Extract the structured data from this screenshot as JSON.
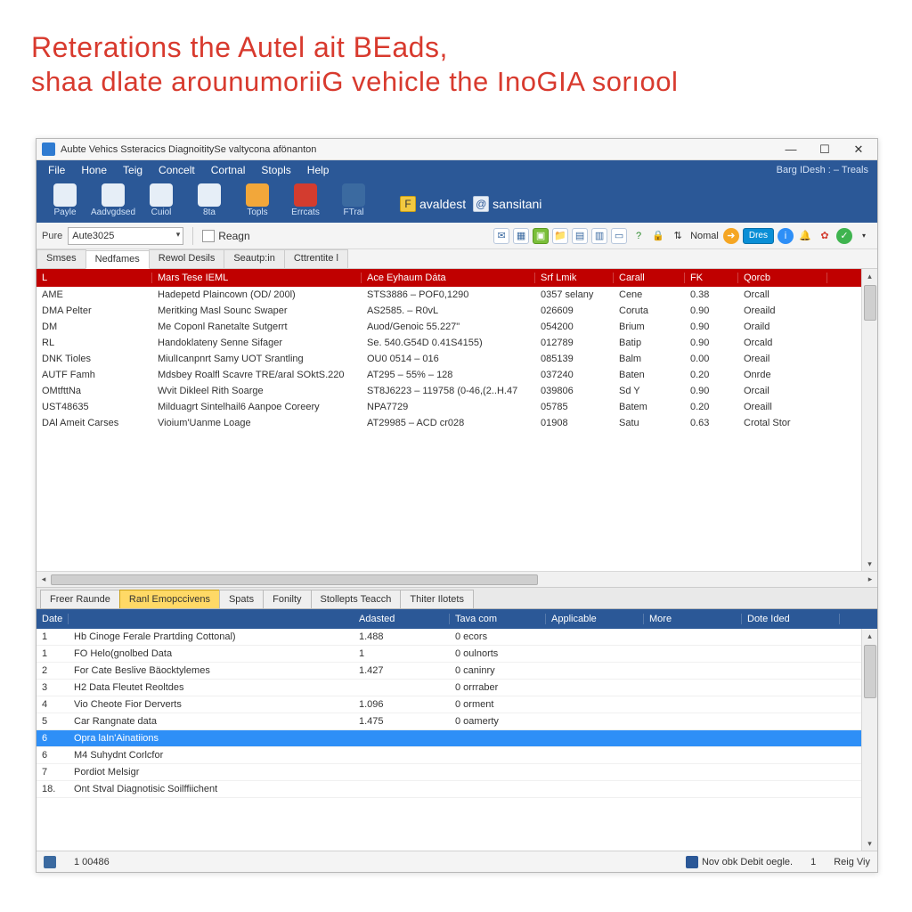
{
  "headline": {
    "line1": "Reterations the Autel ait BEads,",
    "line2": "shaa dlate arounumoriiG vehicle the InoGIA sorıool"
  },
  "window": {
    "title": "Aubte Vehics Ssteracics DiagnoititySe valtycona afönanton"
  },
  "menubar": {
    "items": [
      "File",
      "Hone",
      "Teig",
      "Concelt",
      "Cortnal",
      "Stopls",
      "Help"
    ],
    "right_label": "Barg IDesh : – Treals"
  },
  "toolbar": {
    "buttons": [
      {
        "label": "Payle",
        "color": "#e6eef7"
      },
      {
        "label": "Aadvgdsed",
        "color": "#e6eef7"
      },
      {
        "label": "Cuiol",
        "color": "#e6eef7"
      },
      {
        "label": "8ta",
        "color": "#e6eef7"
      },
      {
        "label": "Topls",
        "color": "#f2a73a"
      },
      {
        "label": "Errcats",
        "color": "#d33c2f"
      },
      {
        "label": "FTral",
        "color": "#3b6aa0"
      }
    ],
    "badges": [
      {
        "icon": "F",
        "label": "avaldest",
        "alt": false
      },
      {
        "icon": "@",
        "label": "sansitani",
        "alt": true
      }
    ]
  },
  "filterrow": {
    "label": "Pure",
    "combo_value": "Aute3025",
    "action_label": "Reagn",
    "status_word": "Nomal",
    "pill": "Dres"
  },
  "subtabs": {
    "items": [
      "Smses",
      "Nedfames",
      "Rewol Desils",
      "Seautp:in",
      "Cttrentite l"
    ],
    "active_index": 1
  },
  "main_table": {
    "columns": [
      "L",
      "Mars Tese IEML",
      "Ace Eyhaum Dáta",
      "Srf Lmik",
      "Carall",
      "FK",
      "Qorcb"
    ],
    "rows": [
      [
        "AME",
        "Hadepetd Plaincown (OD/ 200l)",
        "STS3886 – POF0,1290",
        "0357 selany",
        "Cene",
        "0.38",
        "Orcall"
      ],
      [
        "DMA Pelter",
        "Meritking Masl Sounc Swaper",
        "AS2585. – R0vL",
        "026609",
        "Coruta",
        "0.90",
        "Oreaild"
      ],
      [
        "DM",
        "Me Coponl Ranetalte Sutgerrt",
        "Auod/Genoic   55.227\"",
        "054200",
        "Brium",
        "0.90",
        "Oraild"
      ],
      [
        "RL",
        "Handoklateny Senne Sifager",
        "Se. 540.G54D 0.41S4155)",
        "012789",
        "Batip",
        "0.90",
        "Orcald"
      ],
      [
        "DNK Tioles",
        "MiulIcanpnrt Samy UOT Srantling",
        "OU0 0514 – 016",
        "085139",
        "Balm",
        "0.00",
        "Oreail"
      ],
      [
        "AUTF Famh",
        "Mdsbey Roalfl Scavre TRE/aral SOktS.220",
        "AT295 – 55% – 128",
        "037240",
        "Baten",
        "0.20",
        "Onrde"
      ],
      [
        "OMtfttNa",
        "Wvit Dikleel Rith Soarge",
        "ST8J6223 – 119758 (0-46,(2..H.47",
        "039806",
        "Sd Y",
        "0.90",
        "Orcail"
      ],
      [
        "UST48635",
        "Milduagrt Sintelhail6 Aanpoe Coreery",
        "NPA7729",
        "05785",
        "Batem",
        "0.20",
        "Oreaill"
      ],
      [
        "DAl Ameit Carses",
        "Vioium'Uanme Loage",
        "AT29985 – ACD cr028",
        "01908",
        "Satu",
        "0.63",
        "Crotal Stor"
      ]
    ]
  },
  "lowtabs": {
    "items": [
      "Freer Raunde",
      "Ranl Emopccivens",
      "Spats",
      "Fonilty",
      "Stollepts  Teacch",
      "Thiter Ilotets"
    ],
    "active_index": 1
  },
  "bottom_grid": {
    "columns": [
      "Date",
      "",
      "Adasted",
      "Tava com",
      "Applicable",
      "More",
      "Dote Ided"
    ],
    "rows": [
      {
        "n": "1",
        "label": "Hb Cinoge Ferale Prartding Cottonal)",
        "adasted": "1.488",
        "tava": "0 ecors",
        "app": "",
        "more": "",
        "dote": ""
      },
      {
        "n": "1",
        "label": "FO Helo(gnolbed Data",
        "adasted": "1",
        "tava": "0 oulnorts",
        "app": "",
        "more": "",
        "dote": ""
      },
      {
        "n": "2",
        "label": "For Cate Beslive Bäocktylemes",
        "adasted": "1.427",
        "tava": "0 caninry",
        "app": "",
        "more": "",
        "dote": ""
      },
      {
        "n": "3",
        "label": "H2 Data Fleutet Reoltdes",
        "adasted": "",
        "tava": "0 orrraber",
        "app": "",
        "more": "",
        "dote": ""
      },
      {
        "n": "4",
        "label": "Vio Cheote Fior Derverts",
        "adasted": "1.096",
        "tava": "0 orment",
        "app": "",
        "more": "",
        "dote": ""
      },
      {
        "n": "5",
        "label": "Car Rangnate data",
        "adasted": "1.475",
        "tava": "0 oamerty",
        "app": "",
        "more": "",
        "dote": ""
      },
      {
        "n": "6",
        "label": "Opra laIn'Ainatiions",
        "adasted": "",
        "tava": "",
        "app": "",
        "more": "",
        "dote": "",
        "selected": true
      },
      {
        "n": "6",
        "label": "M4 Suhydnt Corlcfor",
        "adasted": "",
        "tava": "",
        "app": "",
        "more": "",
        "dote": ""
      },
      {
        "n": "7",
        "label": "Pordiot Melsigr",
        "adasted": "",
        "tava": "",
        "app": "",
        "more": "",
        "dote": ""
      },
      {
        "n": "18.",
        "label": "Ont Stval Diagnotisic Soilffiichent",
        "adasted": "",
        "tava": "",
        "app": "",
        "more": "",
        "dote": ""
      }
    ]
  },
  "statusbar": {
    "left": "1 00486",
    "center": "Nov obk Debit oegle.",
    "num": "1",
    "right": "Reig  Viy"
  }
}
